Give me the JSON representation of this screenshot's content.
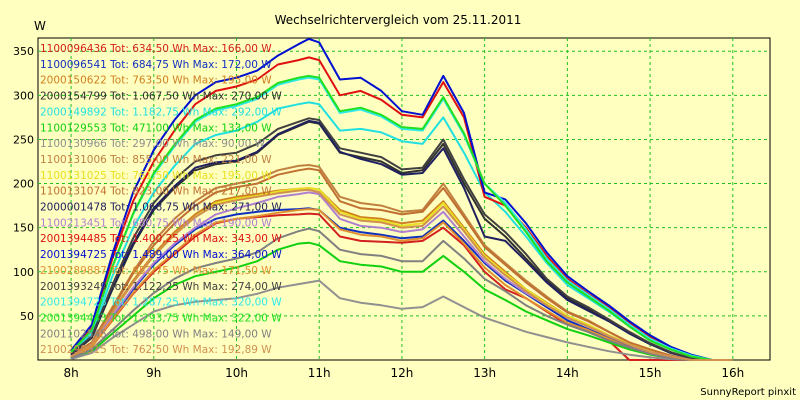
{
  "footer": {
    "text": "SunnyReport pinxit"
  },
  "chart_data": {
    "type": "line",
    "title": "Wechselrichtervergleich vom 25.11.2011",
    "ylabel": "W",
    "xlabel": "",
    "x_ticks": [
      8,
      9,
      10,
      11,
      12,
      13,
      14,
      15,
      16
    ],
    "x_tick_labels": [
      "8h",
      "9h",
      "10h",
      "11h",
      "12h",
      "13h",
      "14h",
      "15h",
      "16h"
    ],
    "xlim": [
      7.6,
      16.45
    ],
    "y_ticks": [
      50,
      100,
      150,
      200,
      250,
      300,
      350
    ],
    "ylim": [
      0,
      365
    ],
    "grid": true,
    "legend_position": "top-left",
    "x": [
      8.0,
      8.25,
      8.5,
      8.75,
      9.0,
      9.25,
      9.5,
      9.75,
      10.0,
      10.25,
      10.5,
      10.75,
      10.875,
      11.0,
      11.25,
      11.5,
      11.75,
      12.0,
      12.25,
      12.5,
      12.75,
      13.0,
      13.25,
      13.5,
      13.75,
      14.0,
      14.25,
      14.5,
      14.75,
      15.0,
      15.25,
      15.5,
      15.75,
      16.0
    ],
    "series": [
      {
        "name": "1100096436 Tot: 634,50 Wh Max: 166,00 W",
        "color": "#d42020",
        "values": [
          3,
          15,
          45,
          75,
          100,
          120,
          140,
          155,
          160,
          162,
          164,
          165,
          166,
          165,
          140,
          135,
          134,
          133,
          135,
          150,
          130,
          100,
          80,
          70,
          55,
          40,
          32,
          22,
          0,
          0,
          0,
          0,
          0,
          0
        ]
      },
      {
        "name": "1100096541 Tot: 684,75 Wh Max: 172,00 W",
        "color": "#1030c0",
        "values": [
          3,
          16,
          48,
          80,
          108,
          130,
          148,
          160,
          165,
          168,
          170,
          171,
          172,
          170,
          150,
          145,
          142,
          138,
          140,
          158,
          135,
          110,
          90,
          75,
          60,
          45,
          35,
          25,
          15,
          8,
          3,
          0,
          0,
          0
        ]
      },
      {
        "name": "2000150622 Tot: 763,50 Wh Max: 195,00 W",
        "color": "#d08020",
        "values": [
          4,
          18,
          55,
          90,
          120,
          145,
          165,
          180,
          185,
          188,
          192,
          194,
          195,
          193,
          170,
          162,
          160,
          155,
          158,
          180,
          150,
          120,
          100,
          80,
          65,
          50,
          40,
          28,
          18,
          10,
          4,
          0,
          0,
          0
        ]
      },
      {
        "name": "2000154799 Tot: 1.067,50 Wh Max: 270,00 W",
        "color": "#303030",
        "values": [
          6,
          25,
          80,
          130,
          170,
          195,
          215,
          222,
          225,
          235,
          255,
          265,
          270,
          268,
          235,
          230,
          225,
          212,
          215,
          245,
          200,
          160,
          140,
          115,
          90,
          70,
          58,
          45,
          30,
          18,
          8,
          2,
          0,
          0
        ]
      },
      {
        "name": "2000149892 Tot: 1.182,75 Wh Max: 292,00 W",
        "color": "#20e0e0",
        "values": [
          8,
          30,
          95,
          150,
          190,
          220,
          245,
          255,
          260,
          270,
          285,
          290,
          292,
          290,
          260,
          262,
          258,
          248,
          245,
          275,
          235,
          190,
          168,
          140,
          110,
          85,
          70,
          55,
          38,
          22,
          12,
          4,
          0,
          0
        ]
      },
      {
        "name": "1100129553 Tot: 471,00 Wh Max: 133,00 W",
        "color": "#10d010",
        "values": [
          2,
          10,
          30,
          50,
          70,
          85,
          95,
          100,
          105,
          112,
          125,
          132,
          133,
          130,
          112,
          108,
          106,
          100,
          100,
          118,
          100,
          80,
          68,
          55,
          45,
          35,
          28,
          20,
          12,
          6,
          2,
          0,
          0,
          0
        ]
      },
      {
        "name": "1100130966 Tot: 297,00 Wh Max: 90,00 W",
        "color": "#909090",
        "values": [
          1,
          8,
          25,
          40,
          55,
          62,
          66,
          68,
          70,
          75,
          82,
          86,
          88,
          90,
          70,
          65,
          62,
          58,
          60,
          72,
          60,
          48,
          40,
          32,
          26,
          20,
          15,
          10,
          6,
          3,
          1,
          0,
          0,
          0
        ]
      },
      {
        "name": "1100131006 Tot: 855,00 Wh Max: 221,00 W",
        "color": "#c08040",
        "values": [
          5,
          20,
          60,
          100,
          135,
          160,
          180,
          195,
          200,
          205,
          215,
          220,
          221,
          219,
          185,
          178,
          175,
          168,
          170,
          200,
          165,
          130,
          110,
          90,
          72,
          55,
          45,
          32,
          20,
          12,
          5,
          0,
          0,
          0
        ]
      },
      {
        "name": "1100131025 Tot: 761,50 Wh Max: 195,00 W",
        "color": "#e8e020",
        "values": [
          4,
          18,
          54,
          88,
          118,
          142,
          162,
          178,
          183,
          186,
          191,
          194,
          195,
          193,
          168,
          160,
          158,
          152,
          155,
          178,
          148,
          118,
          98,
          80,
          64,
          50,
          40,
          28,
          18,
          10,
          4,
          0,
          0,
          0
        ]
      },
      {
        "name": "1100131074 Tot: 823,00 Wh Max: 217,00 W",
        "color": "#c07030",
        "values": [
          5,
          20,
          58,
          98,
          130,
          155,
          175,
          190,
          196,
          200,
          210,
          215,
          217,
          215,
          180,
          172,
          170,
          165,
          168,
          195,
          162,
          128,
          108,
          88,
          70,
          54,
          44,
          32,
          20,
          12,
          5,
          0,
          0,
          0
        ]
      },
      {
        "name": "2000001478 Tot: 1.068,75 Wh Max: 271,00 W",
        "color": "#202060",
        "values": [
          6,
          26,
          82,
          132,
          172,
          197,
          218,
          224,
          226,
          236,
          256,
          266,
          271,
          269,
          236,
          228,
          222,
          210,
          212,
          240,
          195,
          140,
          135,
          112,
          88,
          68,
          56,
          44,
          30,
          18,
          8,
          2,
          0,
          0
        ]
      },
      {
        "name": "1100213451 Tot: 680,75 Wh Max: 190,00 W",
        "color": "#b080d0",
        "values": [
          4,
          16,
          50,
          82,
          110,
          132,
          150,
          165,
          172,
          178,
          185,
          188,
          190,
          188,
          160,
          152,
          150,
          145,
          148,
          168,
          140,
          112,
          92,
          76,
          62,
          48,
          38,
          27,
          17,
          9,
          4,
          0,
          0,
          0
        ]
      },
      {
        "name": "2001394485 Tot: 1.400,25 Wh Max: 343,00 W",
        "color": "#e01010",
        "values": [
          10,
          38,
          115,
          180,
          225,
          260,
          290,
          305,
          310,
          318,
          335,
          340,
          343,
          340,
          300,
          305,
          295,
          278,
          275,
          315,
          275,
          185,
          175,
          150,
          118,
          92,
          75,
          60,
          42,
          26,
          14,
          5,
          0,
          0
        ]
      },
      {
        "name": "2001394725 Tot: 1.489,00 Wh Max: 364,00 W",
        "color": "#0010d0",
        "values": [
          11,
          40,
          120,
          190,
          238,
          272,
          300,
          315,
          320,
          328,
          345,
          358,
          364,
          360,
          318,
          320,
          305,
          282,
          278,
          322,
          280,
          190,
          182,
          155,
          122,
          95,
          78,
          62,
          44,
          28,
          15,
          6,
          0,
          0
        ]
      },
      {
        "name": "2100289887 Tot: 652,75 Wh Max: 171,50 W",
        "color": "#e09030",
        "values": [
          3,
          15,
          46,
          76,
          102,
          122,
          142,
          156,
          160,
          163,
          167,
          170,
          171,
          170,
          148,
          142,
          140,
          135,
          138,
          156,
          132,
          105,
          85,
          70,
          56,
          42,
          34,
          24,
          14,
          7,
          3,
          0,
          0,
          0
        ]
      },
      {
        "name": "2001393249 Tot: 1.122,25 Wh Max: 274,00 W",
        "color": "#404040",
        "values": [
          7,
          27,
          85,
          138,
          178,
          205,
          225,
          232,
          235,
          245,
          262,
          270,
          274,
          272,
          240,
          235,
          230,
          216,
          218,
          250,
          205,
          165,
          145,
          120,
          92,
          72,
          60,
          46,
          32,
          19,
          9,
          2,
          0,
          0
        ]
      },
      {
        "name": "2001394723 Tot: 1.287,25 Wh Max: 320,00 W",
        "color": "#30e8e8",
        "values": [
          9,
          34,
          105,
          165,
          210,
          242,
          270,
          283,
          288,
          296,
          312,
          318,
          320,
          318,
          280,
          284,
          276,
          262,
          260,
          296,
          255,
          200,
          178,
          148,
          115,
          90,
          74,
          58,
          40,
          24,
          13,
          5,
          0,
          0
        ]
      },
      {
        "name": "2001394443 Tot: 1.293,75 Wh Max: 322,00 W",
        "color": "#20e020",
        "values": [
          9,
          34,
          106,
          166,
          212,
          244,
          272,
          285,
          290,
          298,
          314,
          320,
          322,
          320,
          282,
          286,
          278,
          264,
          262,
          298,
          257,
          200,
          175,
          145,
          112,
          88,
          72,
          56,
          38,
          22,
          12,
          4,
          0,
          0
        ]
      },
      {
        "name": "2001102545 Tot: 498,00 Wh Max: 149,00 W",
        "color": "#808080",
        "values": [
          2,
          12,
          34,
          56,
          76,
          92,
          104,
          110,
          115,
          122,
          138,
          146,
          149,
          146,
          125,
          120,
          118,
          112,
          112,
          135,
          115,
          92,
          78,
          62,
          50,
          40,
          32,
          22,
          14,
          7,
          2,
          0,
          0,
          0
        ]
      },
      {
        "name": "2100290315 Tot: 762,50 Wh Max: 192,89 W",
        "color": "#d09050",
        "values": [
          4,
          18,
          54,
          88,
          118,
          142,
          162,
          176,
          181,
          185,
          189,
          192,
          192.89,
          190,
          165,
          158,
          156,
          150,
          152,
          174,
          146,
          116,
          96,
          78,
          62,
          48,
          38,
          27,
          17,
          9,
          4,
          0,
          0,
          0
        ]
      }
    ]
  }
}
